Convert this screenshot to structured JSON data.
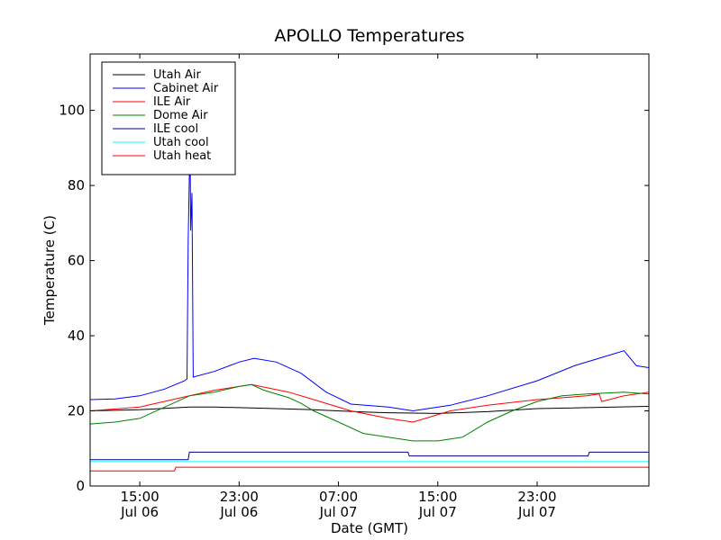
{
  "chart_data": {
    "type": "line",
    "title": "APOLLO Temperatures",
    "xlabel": "Date (GMT)",
    "ylabel": "Temperature (C)",
    "xlim": [
      0,
      45
    ],
    "ylim": [
      0,
      115
    ],
    "x_unit": "hours since 11:00 Jul 06",
    "xticks": [
      {
        "x": 4,
        "time": "15:00",
        "date": "Jul 06"
      },
      {
        "x": 12,
        "time": "23:00",
        "date": "Jul 06"
      },
      {
        "x": 20,
        "time": "07:00",
        "date": "Jul 07"
      },
      {
        "x": 28,
        "time": "15:00",
        "date": "Jul 07"
      },
      {
        "x": 36,
        "time": "23:00",
        "date": "Jul 07"
      }
    ],
    "yticks": [
      0,
      20,
      40,
      60,
      80,
      100
    ],
    "legend_position": "top-left",
    "series": [
      {
        "name": "Utah Air",
        "color": "#000000",
        "points": [
          [
            0,
            20
          ],
          [
            4,
            20.3
          ],
          [
            8,
            21
          ],
          [
            10,
            21
          ],
          [
            14,
            20.7
          ],
          [
            18,
            20.3
          ],
          [
            22,
            19.7
          ],
          [
            24,
            19.5
          ],
          [
            28,
            19.3
          ],
          [
            32,
            19.8
          ],
          [
            36,
            20.6
          ],
          [
            45,
            21.2
          ]
        ]
      },
      {
        "name": "Cabinet Air",
        "color": "#0000ff",
        "points": [
          [
            0,
            23
          ],
          [
            2,
            23.2
          ],
          [
            4,
            24
          ],
          [
            6,
            25.8
          ],
          [
            7.6,
            28
          ],
          [
            7.8,
            28.5
          ],
          [
            7.9,
            65
          ],
          [
            8.0,
            84
          ],
          [
            8.05,
            90
          ],
          [
            8.1,
            68
          ],
          [
            8.2,
            78
          ],
          [
            8.3,
            29
          ],
          [
            10,
            30.5
          ],
          [
            12,
            33
          ],
          [
            13.2,
            34
          ],
          [
            15,
            33
          ],
          [
            17,
            30
          ],
          [
            19,
            25
          ],
          [
            21,
            21.8
          ],
          [
            24,
            21
          ],
          [
            26,
            20
          ],
          [
            29,
            21.5
          ],
          [
            32,
            24
          ],
          [
            36,
            28
          ],
          [
            39,
            32
          ],
          [
            42,
            35
          ],
          [
            43,
            36
          ],
          [
            43.5,
            34
          ],
          [
            44,
            32
          ],
          [
            45,
            31.5
          ]
        ]
      },
      {
        "name": "ILE Air",
        "color": "#ff0000",
        "points": [
          [
            0,
            20
          ],
          [
            4,
            21
          ],
          [
            8,
            24
          ],
          [
            10,
            25.5
          ],
          [
            11,
            26
          ],
          [
            12,
            26.5
          ],
          [
            13,
            27
          ],
          [
            16,
            25
          ],
          [
            18,
            23
          ],
          [
            21,
            20
          ],
          [
            24,
            18
          ],
          [
            26,
            17
          ],
          [
            27,
            18
          ],
          [
            29,
            20
          ],
          [
            32,
            21.5
          ],
          [
            36,
            23
          ],
          [
            40,
            24
          ],
          [
            41,
            24.5
          ],
          [
            41.2,
            22.5
          ],
          [
            43,
            24
          ],
          [
            45,
            25
          ]
        ]
      },
      {
        "name": "Dome Air",
        "color": "#008000",
        "points": [
          [
            0,
            16.5
          ],
          [
            2,
            17
          ],
          [
            4,
            18
          ],
          [
            6,
            21
          ],
          [
            8,
            24
          ],
          [
            10,
            25
          ],
          [
            12,
            26.5
          ],
          [
            13,
            27
          ],
          [
            14,
            25.5
          ],
          [
            16,
            23.5
          ],
          [
            17,
            22
          ],
          [
            18,
            20
          ],
          [
            20,
            17
          ],
          [
            22,
            14
          ],
          [
            24,
            13
          ],
          [
            26,
            12
          ],
          [
            28,
            12
          ],
          [
            30,
            13
          ],
          [
            32,
            17
          ],
          [
            34,
            20
          ],
          [
            36,
            22.5
          ],
          [
            38,
            24
          ],
          [
            40,
            24.5
          ],
          [
            43,
            25
          ],
          [
            45,
            24.5
          ]
        ]
      },
      {
        "name": "ILE cool",
        "color": "#000080",
        "points": [
          [
            0,
            7
          ],
          [
            7.9,
            7
          ],
          [
            8,
            9
          ],
          [
            25.6,
            9
          ],
          [
            25.7,
            8
          ],
          [
            40.1,
            8
          ],
          [
            40.2,
            9
          ],
          [
            45,
            9
          ]
        ]
      },
      {
        "name": "Utah cool",
        "color": "#00ffff",
        "points": [
          [
            0,
            6.5
          ],
          [
            45,
            6.5
          ]
        ]
      },
      {
        "name": "Utah heat",
        "color": "#ff0000",
        "points": [
          [
            0,
            4
          ],
          [
            6.8,
            4
          ],
          [
            6.9,
            5
          ],
          [
            45,
            5
          ]
        ]
      }
    ]
  }
}
